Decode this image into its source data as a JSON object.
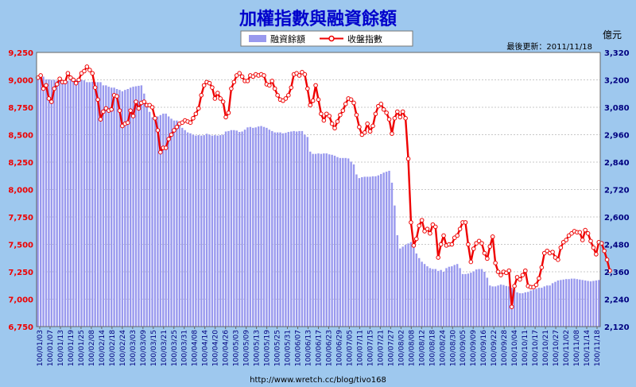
{
  "title": "加權指數與融資餘額",
  "unit_label": "億元",
  "updated": "最後更新：2011/11/18",
  "footer": "http://www.wretch.cc/blog/tivo168",
  "colors": {
    "background": "#9ec8ee",
    "plot_bg": "#ffffff",
    "bars": "#9999ee",
    "line": "#ee0000",
    "title": "#0000cc",
    "left_axis": "#ee0000",
    "right_axis": "#000080"
  },
  "chart_data": {
    "type": "bar+line",
    "legend": [
      "融資餘額",
      "收盤指數"
    ],
    "legend_position": "top-center",
    "grid": true,
    "left_axis": {
      "series": "收盤指數",
      "ylim": [
        6750,
        9250
      ],
      "ticks": [
        "9,250",
        "9,000",
        "8,750",
        "8,500",
        "8,250",
        "8,000",
        "7,750",
        "7,500",
        "7,250",
        "7,000",
        "6,750"
      ]
    },
    "right_axis": {
      "series": "融資餘額",
      "unit": "億元",
      "ylim": [
        2120,
        3320
      ],
      "ticks": [
        "3,320",
        "3,200",
        "3,080",
        "2,960",
        "2,840",
        "2,720",
        "2,600",
        "2,480",
        "2,360",
        "2,240",
        "2,120"
      ]
    },
    "x_tick_labels": [
      "100/01/03",
      "100/01/07",
      "100/01/13",
      "100/01/19",
      "100/01/25",
      "100/02/08",
      "100/02/14",
      "100/02/18",
      "100/02/24",
      "100/03/03",
      "100/03/09",
      "100/03/15",
      "100/03/21",
      "100/03/25",
      "100/03/31",
      "100/04/08",
      "100/04/14",
      "100/04/20",
      "100/04/26",
      "100/05/03",
      "100/05/09",
      "100/05/13",
      "100/05/19",
      "100/05/25",
      "100/05/31",
      "100/06/07",
      "100/06/13",
      "100/06/17",
      "100/06/23",
      "100/06/29",
      "100/07/05",
      "100/07/11",
      "100/07/15",
      "100/07/21",
      "100/07/27",
      "100/08/02",
      "100/08/08",
      "100/08/12",
      "100/08/18",
      "100/08/24",
      "100/08/30",
      "100/09/05",
      "100/09/09",
      "100/09/16",
      "100/09/22",
      "100/09/28",
      "100/10/04",
      "100/10/11",
      "100/10/17",
      "100/10/21",
      "100/10/27",
      "100/11/02",
      "100/11/08",
      "100/11/14",
      "100/11/18"
    ],
    "series": [
      {
        "name": "融資餘額",
        "type": "bar",
        "axis": "right",
        "values": [
          3208,
          3208,
          3214,
          3202,
          3202,
          3200,
          3200,
          3196,
          3196,
          3196,
          3194,
          3196,
          3204,
          3210,
          3200,
          3198,
          3200,
          3198,
          3190,
          3190,
          3192,
          3190,
          3190,
          3190,
          3176,
          3176,
          3170,
          3166,
          3166,
          3160,
          3156,
          3150,
          3156,
          3160,
          3166,
          3170,
          3172,
          3174,
          3176,
          3140,
          3090,
          3060,
          3036,
          3034,
          3040,
          3046,
          3052,
          3052,
          3040,
          3030,
          3022,
          3022,
          3000,
          2990,
          2980,
          2970,
          2966,
          2960,
          2956,
          2958,
          2956,
          2958,
          2964,
          2960,
          2956,
          2958,
          2956,
          2958,
          2960,
          2974,
          2976,
          2980,
          2980,
          2978,
          2972,
          2974,
          2982,
          2992,
          2994,
          2990,
          2992,
          2996,
          2998,
          2994,
          2990,
          2982,
          2976,
          2970,
          2970,
          2970,
          2966,
          2968,
          2972,
          2974,
          2976,
          2974,
          2976,
          2976,
          2960,
          2950,
          2886,
          2876,
          2876,
          2878,
          2876,
          2878,
          2878,
          2874,
          2872,
          2868,
          2862,
          2858,
          2858,
          2858,
          2856,
          2842,
          2830,
          2786,
          2770,
          2774,
          2776,
          2776,
          2776,
          2778,
          2778,
          2782,
          2788,
          2794,
          2798,
          2802,
          2750,
          2650,
          2520,
          2462,
          2470,
          2478,
          2484,
          2490,
          2470,
          2440,
          2420,
          2404,
          2394,
          2384,
          2376,
          2372,
          2372,
          2364,
          2368,
          2360,
          2376,
          2382,
          2384,
          2390,
          2394,
          2376,
          2350,
          2350,
          2352,
          2356,
          2362,
          2370,
          2372,
          2372,
          2360,
          2334,
          2300,
          2296,
          2296,
          2300,
          2304,
          2302,
          2298,
          2296,
          2290,
          2282,
          2270,
          2266,
          2266,
          2270,
          2272,
          2278,
          2282,
          2286,
          2290,
          2290,
          2296,
          2300,
          2300,
          2310,
          2316,
          2322,
          2324,
          2326,
          2328,
          2328,
          2330,
          2330,
          2328,
          2326,
          2324,
          2322,
          2320,
          2318,
          2320,
          2322,
          2324
        ]
      },
      {
        "name": "收盤指數",
        "type": "line",
        "axis": "left",
        "values": [
          9020,
          9040,
          8920,
          8950,
          8830,
          8800,
          8920,
          8960,
          9010,
          8980,
          8980,
          9060,
          9020,
          9000,
          8970,
          9000,
          9060,
          9080,
          9120,
          9090,
          9060,
          8930,
          8820,
          8640,
          8710,
          8740,
          8720,
          8730,
          8860,
          8850,
          8720,
          8580,
          8600,
          8610,
          8720,
          8670,
          8800,
          8740,
          8790,
          8800,
          8770,
          8770,
          8750,
          8650,
          8540,
          8340,
          8380,
          8380,
          8460,
          8500,
          8540,
          8570,
          8600,
          8610,
          8630,
          8620,
          8610,
          8650,
          8690,
          8740,
          8860,
          8950,
          8980,
          8970,
          8930,
          8830,
          8880,
          8830,
          8800,
          8660,
          8700,
          8920,
          8980,
          9040,
          9060,
          9030,
          8990,
          8990,
          9040,
          9030,
          9050,
          9040,
          9050,
          9040,
          8960,
          8950,
          8990,
          8920,
          8860,
          8820,
          8810,
          8830,
          8860,
          8930,
          9050,
          9060,
          9040,
          9070,
          9050,
          8920,
          8770,
          8810,
          8950,
          8820,
          8690,
          8630,
          8690,
          8670,
          8600,
          8560,
          8620,
          8680,
          8720,
          8780,
          8830,
          8820,
          8790,
          8680,
          8570,
          8500,
          8520,
          8600,
          8530,
          8580,
          8690,
          8760,
          8780,
          8730,
          8700,
          8640,
          8510,
          8650,
          8710,
          8660,
          8710,
          8650,
          8280,
          7700,
          7490,
          7550,
          7670,
          7720,
          7620,
          7640,
          7600,
          7680,
          7660,
          7380,
          7500,
          7580,
          7490,
          7500,
          7500,
          7560,
          7580,
          7640,
          7700,
          7700,
          7500,
          7340,
          7460,
          7510,
          7530,
          7510,
          7420,
          7370,
          7480,
          7570,
          7330,
          7250,
          7220,
          7250,
          7240,
          7260,
          6930,
          7120,
          7200,
          7180,
          7220,
          7260,
          7120,
          7110,
          7110,
          7130,
          7190,
          7290,
          7420,
          7440,
          7420,
          7430,
          7380,
          7360,
          7470,
          7520,
          7540,
          7580,
          7600,
          7620,
          7610,
          7610,
          7540,
          7630,
          7600,
          7530,
          7470,
          7410,
          7520,
          7510,
          7440,
          7360,
          7260
        ]
      }
    ]
  }
}
